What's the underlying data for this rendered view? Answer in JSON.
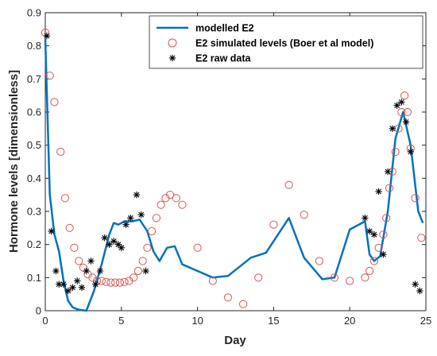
{
  "chart_data": {
    "type": "line",
    "xlabel": "Day",
    "ylabel": "Hormone levels [dimensionless]",
    "xlim": [
      0,
      25
    ],
    "ylim": [
      0,
      0.9
    ],
    "xticks": [
      "0",
      "5",
      "10",
      "15",
      "20",
      "25"
    ],
    "yticks": [
      "0",
      "0.1",
      "0.2",
      "0.3",
      "0.4",
      "0.5",
      "0.6",
      "0.7",
      "0.8",
      "0.9"
    ],
    "grid": false,
    "legend_position": "top-right",
    "colors": {
      "line": "#0072BD",
      "circles": "#D95353",
      "stars": "#000000"
    },
    "series": [
      {
        "name": "modelled E2",
        "style": "line",
        "x": [
          0,
          0.3,
          0.6,
          0.9,
          1.2,
          1.5,
          1.8,
          2.2,
          2.7,
          3.2,
          3.7,
          4.2,
          4.5,
          4.8,
          5.2,
          5.7,
          6.2,
          6.7,
          7.1,
          7.5,
          8.0,
          8.5,
          9.0,
          10.0,
          11.0,
          12.0,
          13.5,
          14.5,
          16.0,
          17.0,
          18.2,
          19.0,
          20.0,
          21.0,
          21.3,
          21.6,
          22.0,
          22.5,
          23.0,
          23.5,
          24.0,
          24.5,
          24.8
        ],
        "y": [
          0.82,
          0.35,
          0.23,
          0.18,
          0.09,
          0.03,
          0.01,
          0.003,
          0.0,
          0.06,
          0.14,
          0.23,
          0.265,
          0.26,
          0.27,
          0.27,
          0.275,
          0.24,
          0.18,
          0.15,
          0.19,
          0.195,
          0.14,
          0.12,
          0.1,
          0.105,
          0.16,
          0.175,
          0.28,
          0.16,
          0.095,
          0.1,
          0.245,
          0.27,
          0.17,
          0.15,
          0.165,
          0.3,
          0.52,
          0.6,
          0.5,
          0.3,
          0.265
        ]
      },
      {
        "name": "E2 simulated levels (Boer et al model)",
        "style": "circle",
        "x": [
          0,
          0.3,
          0.6,
          1.0,
          1.3,
          1.6,
          1.9,
          2.2,
          2.5,
          2.8,
          3.1,
          3.4,
          3.7,
          4.0,
          4.3,
          4.6,
          4.9,
          5.2,
          5.5,
          5.8,
          6.1,
          6.4,
          6.7,
          7.0,
          7.3,
          7.6,
          7.9,
          8.2,
          8.6,
          9.0,
          10.0,
          11.0,
          12.0,
          13.0,
          14.0,
          15.0,
          16.0,
          17.0,
          18.0,
          19.0,
          20.0,
          21.0,
          21.3,
          21.6,
          21.9,
          22.2,
          22.4,
          22.6,
          22.8,
          23.0,
          23.2,
          23.4,
          23.6,
          23.8,
          24.0,
          24.3,
          24.7
        ],
        "y": [
          0.84,
          0.71,
          0.63,
          0.48,
          0.34,
          0.25,
          0.19,
          0.15,
          0.13,
          0.11,
          0.1,
          0.09,
          0.09,
          0.087,
          0.085,
          0.085,
          0.085,
          0.087,
          0.09,
          0.1,
          0.12,
          0.15,
          0.19,
          0.24,
          0.28,
          0.32,
          0.34,
          0.35,
          0.34,
          0.32,
          0.19,
          0.09,
          0.04,
          0.02,
          0.1,
          0.26,
          0.38,
          0.29,
          0.15,
          0.1,
          0.09,
          0.1,
          0.12,
          0.15,
          0.19,
          0.23,
          0.28,
          0.37,
          0.42,
          0.48,
          0.55,
          0.6,
          0.65,
          0.6,
          0.49,
          0.34,
          0.22
        ]
      },
      {
        "name": "E2 raw data",
        "style": "star",
        "x": [
          0.1,
          0.4,
          0.7,
          0.9,
          1.2,
          1.5,
          1.8,
          2.1,
          2.4,
          2.7,
          3.0,
          3.3,
          3.6,
          3.9,
          4.2,
          4.5,
          4.8,
          5.0,
          5.3,
          5.6,
          6.0,
          6.3,
          6.6,
          21.0,
          21.3,
          21.6,
          21.9,
          22.2,
          22.5,
          22.8,
          23.1,
          23.4,
          23.7,
          24.0,
          24.3,
          24.6
        ],
        "y": [
          0.83,
          0.24,
          0.12,
          0.08,
          0.08,
          0.06,
          0.07,
          0.09,
          0.07,
          0.12,
          0.15,
          0.08,
          0.12,
          0.22,
          0.2,
          0.21,
          0.2,
          0.19,
          0.26,
          0.28,
          0.35,
          0.29,
          0.12,
          0.28,
          0.24,
          0.23,
          0.36,
          0.17,
          0.42,
          0.55,
          0.62,
          0.63,
          0.57,
          0.48,
          0.08,
          0.06
        ]
      }
    ]
  }
}
